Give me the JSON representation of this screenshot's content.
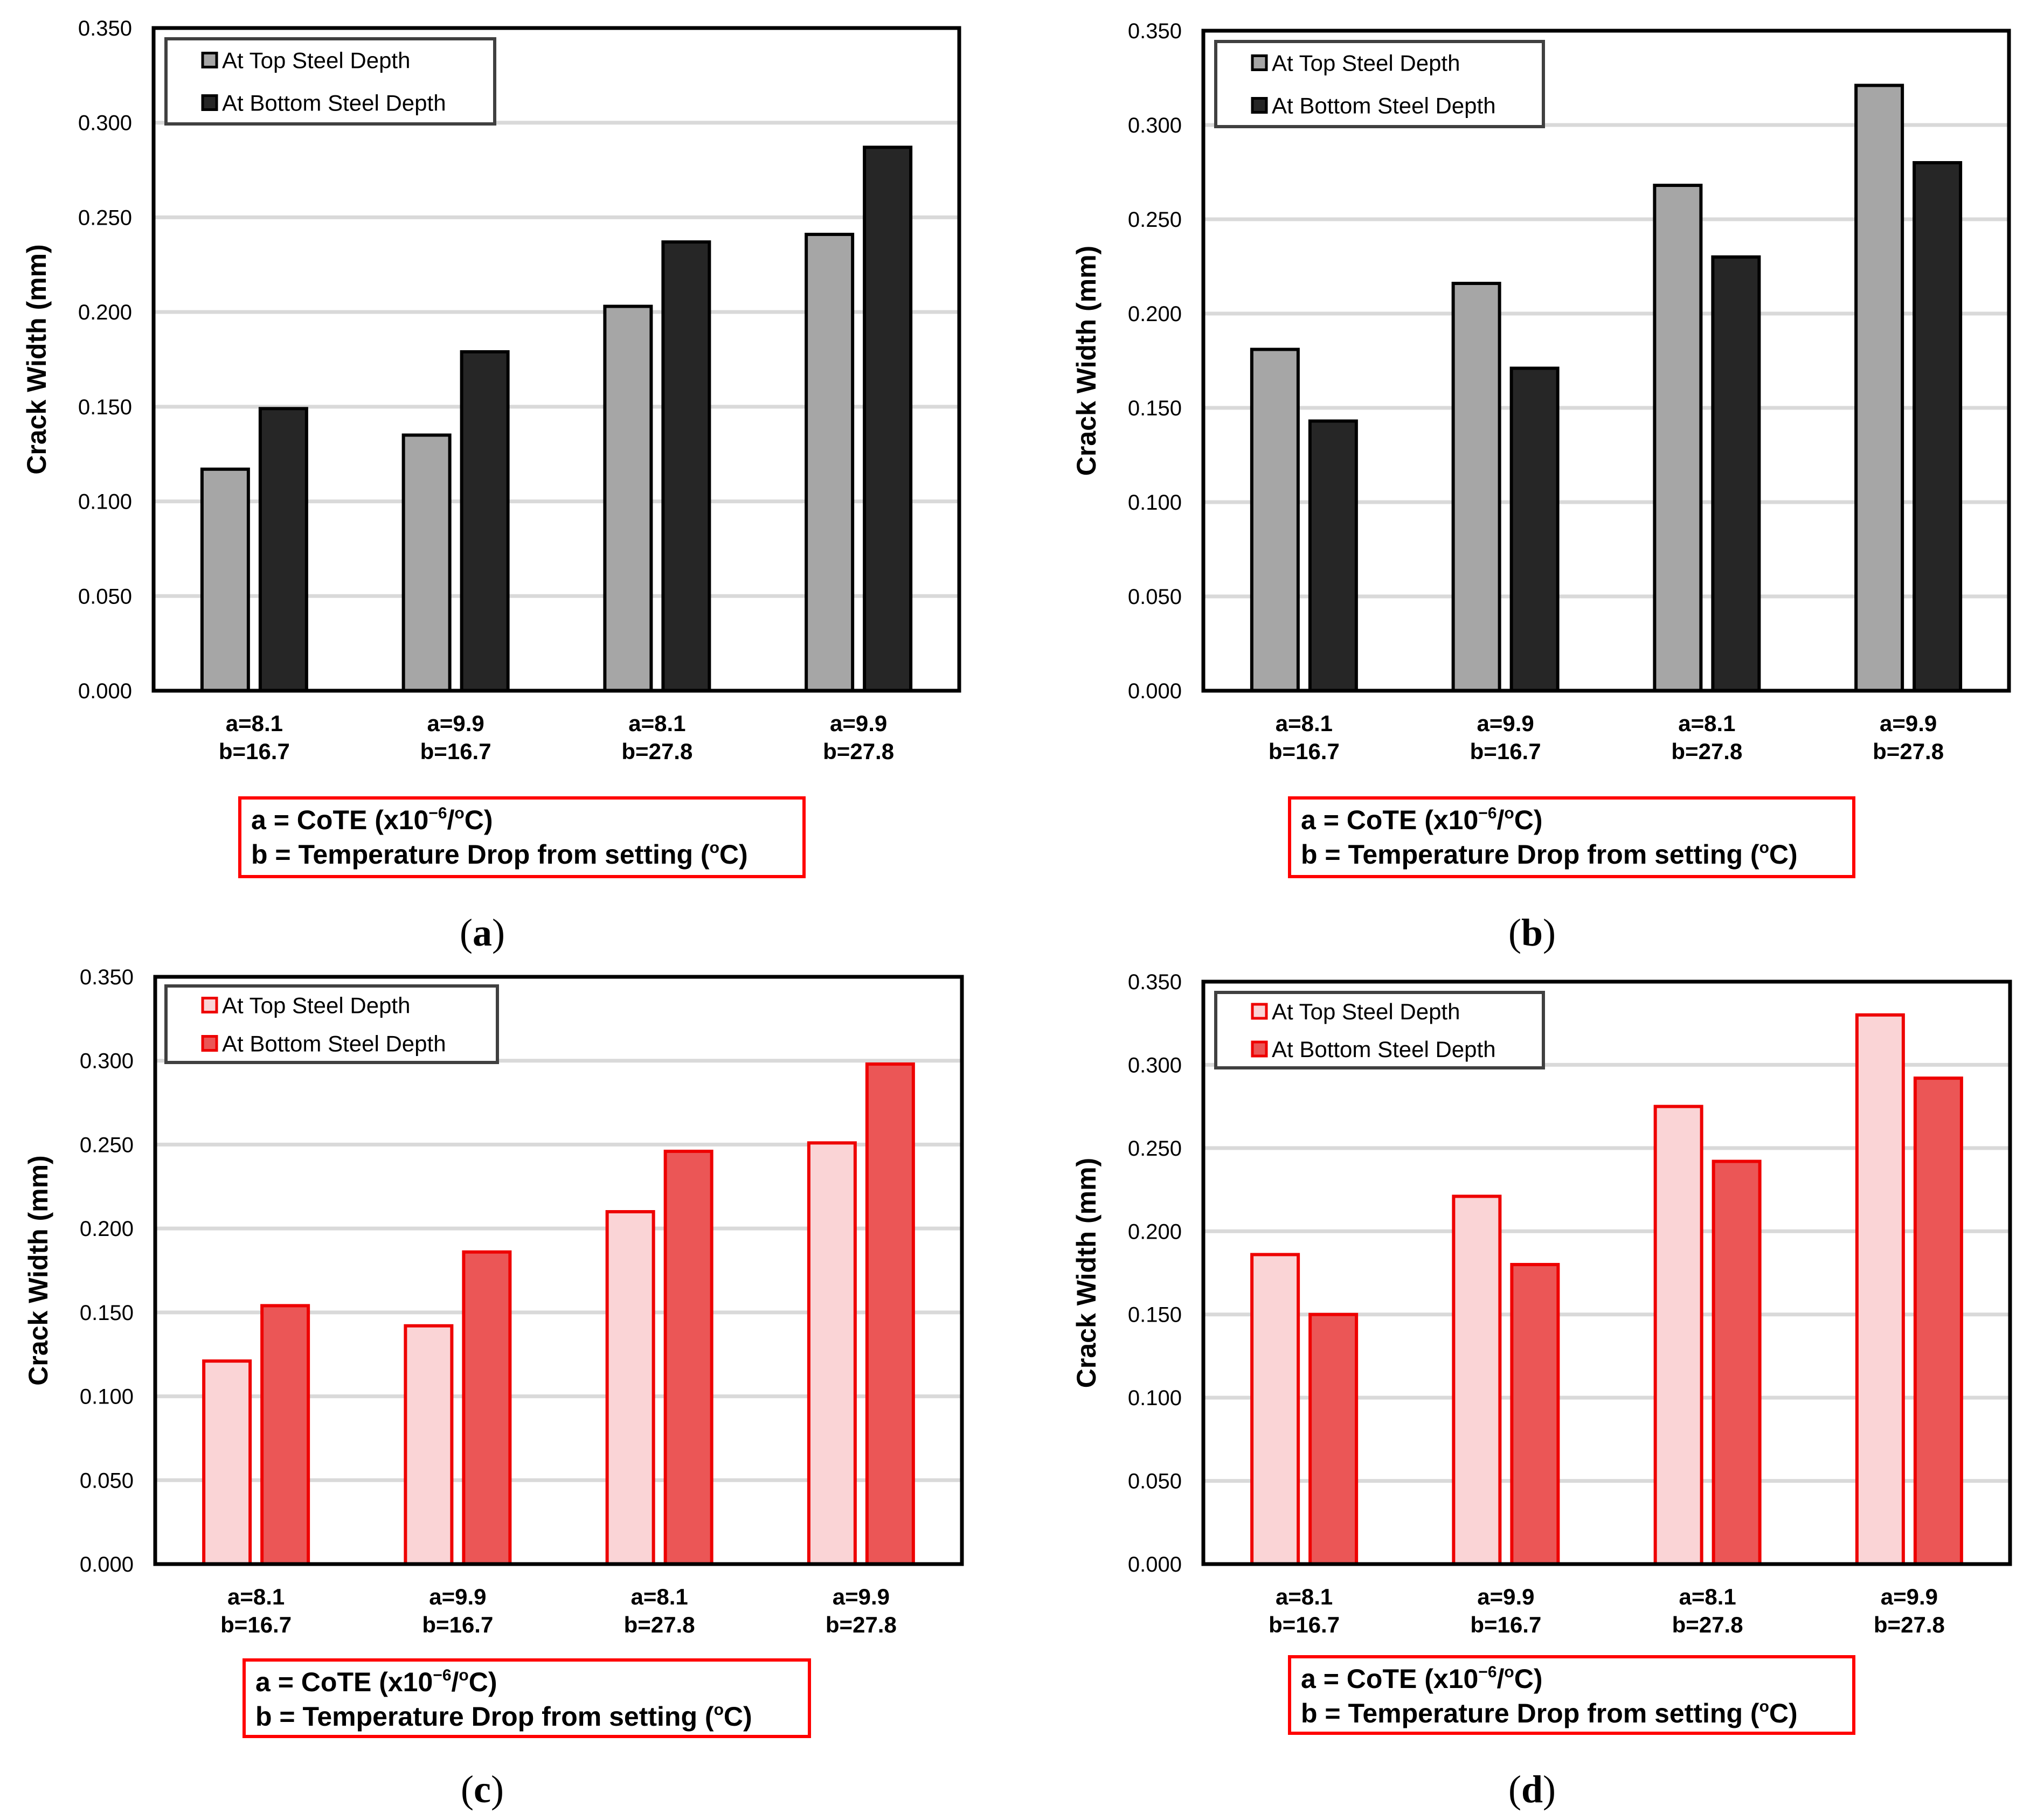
{
  "notes": {
    "a_prefix": "a = CoTE (x10",
    "a_exp": "−6",
    "a_slash": "/",
    "a_degree": "o",
    "a_unit": "C)",
    "b_prefix": "b = Temperature Drop from setting (",
    "b_degree": "o",
    "b_unit": "C)"
  },
  "captions": [
    "a",
    "b",
    "c",
    "d"
  ],
  "colors": {
    "gray_top_fill": "#a6a6a6",
    "gray_bottom_fill": "#262626",
    "red_top_fill": "#fad4d6",
    "red_bottom_fill": "#eb5656",
    "red_stroke": "#ee0000",
    "black_stroke": "#000000",
    "note_border": "#ff0000",
    "grid": "#d9d9d9",
    "legend_border": "#404040"
  },
  "chart_data": [
    {
      "type": "bar",
      "panel": "a",
      "ylabel": "Crack Width (mm)",
      "ylim": [
        0,
        0.35
      ],
      "yticks": [
        "0.000",
        "0.050",
        "0.100",
        "0.150",
        "0.200",
        "0.250",
        "0.300",
        "0.350"
      ],
      "grid": true,
      "legend_position": "top-left",
      "categories": [
        [
          "a=8.1",
          "b=16.7"
        ],
        [
          "a=9.9",
          "b=16.7"
        ],
        [
          "a=8.1",
          "b=27.8"
        ],
        [
          "a=9.9",
          "b=27.8"
        ]
      ],
      "series": [
        {
          "name": "At Top Steel Depth",
          "values": [
            0.117,
            0.135,
            0.203,
            0.241
          ]
        },
        {
          "name": "At Bottom Steel Depth",
          "values": [
            0.149,
            0.179,
            0.237,
            0.287
          ]
        }
      ]
    },
    {
      "type": "bar",
      "panel": "b",
      "ylabel": "Crack Width (mm)",
      "ylim": [
        0,
        0.35
      ],
      "yticks": [
        "0.000",
        "0.050",
        "0.100",
        "0.150",
        "0.200",
        "0.250",
        "0.300",
        "0.350"
      ],
      "grid": true,
      "legend_position": "top-left",
      "categories": [
        [
          "a=8.1",
          "b=16.7"
        ],
        [
          "a=9.9",
          "b=16.7"
        ],
        [
          "a=8.1",
          "b=27.8"
        ],
        [
          "a=9.9",
          "b=27.8"
        ]
      ],
      "series": [
        {
          "name": "At Top Steel Depth",
          "values": [
            0.181,
            0.216,
            0.268,
            0.321
          ]
        },
        {
          "name": "At Bottom Steel Depth",
          "values": [
            0.143,
            0.171,
            0.23,
            0.28
          ]
        }
      ]
    },
    {
      "type": "bar",
      "panel": "c",
      "ylabel": "Crack Width (mm)",
      "ylim": [
        0,
        0.35
      ],
      "yticks": [
        "0.000",
        "0.050",
        "0.100",
        "0.150",
        "0.200",
        "0.250",
        "0.300",
        "0.350"
      ],
      "grid": true,
      "legend_position": "top-left",
      "categories": [
        [
          "a=8.1",
          "b=16.7"
        ],
        [
          "a=9.9",
          "b=16.7"
        ],
        [
          "a=8.1",
          "b=27.8"
        ],
        [
          "a=9.9",
          "b=27.8"
        ]
      ],
      "series": [
        {
          "name": "At Top Steel Depth",
          "values": [
            0.121,
            0.142,
            0.21,
            0.251
          ]
        },
        {
          "name": "At Bottom Steel Depth",
          "values": [
            0.154,
            0.186,
            0.246,
            0.298
          ]
        }
      ]
    },
    {
      "type": "bar",
      "panel": "d",
      "ylabel": "Crack Width (mm)",
      "ylim": [
        0,
        0.35
      ],
      "yticks": [
        "0.000",
        "0.050",
        "0.100",
        "0.150",
        "0.200",
        "0.250",
        "0.300",
        "0.350"
      ],
      "grid": true,
      "legend_position": "top-left",
      "categories": [
        [
          "a=8.1",
          "b=16.7"
        ],
        [
          "a=9.9",
          "b=16.7"
        ],
        [
          "a=8.1",
          "b=27.8"
        ],
        [
          "a=9.9",
          "b=27.8"
        ]
      ],
      "series": [
        {
          "name": "At Top Steel Depth",
          "values": [
            0.186,
            0.221,
            0.275,
            0.33
          ]
        },
        {
          "name": "At Bottom Steel Depth",
          "values": [
            0.15,
            0.18,
            0.242,
            0.292
          ]
        }
      ]
    }
  ]
}
